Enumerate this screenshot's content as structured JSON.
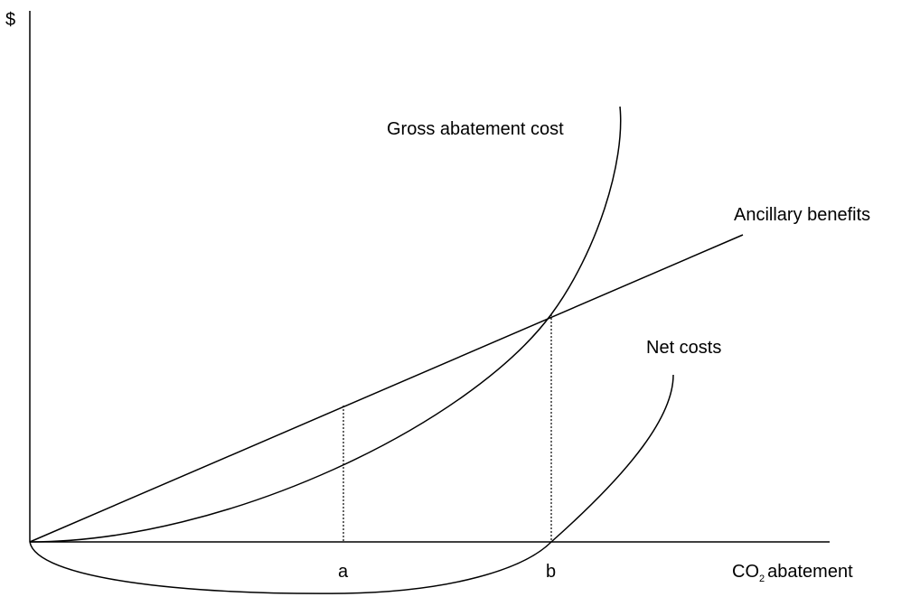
{
  "y_axis_label": "$",
  "curves": {
    "gross": "Gross abatement cost",
    "ancillary": "Ancillary benefits",
    "net": "Net costs"
  },
  "x_points": {
    "a": "a",
    "b": "b"
  },
  "x_axis_label": {
    "main": "CO",
    "subscript": "2",
    "rest": "abatement"
  }
}
